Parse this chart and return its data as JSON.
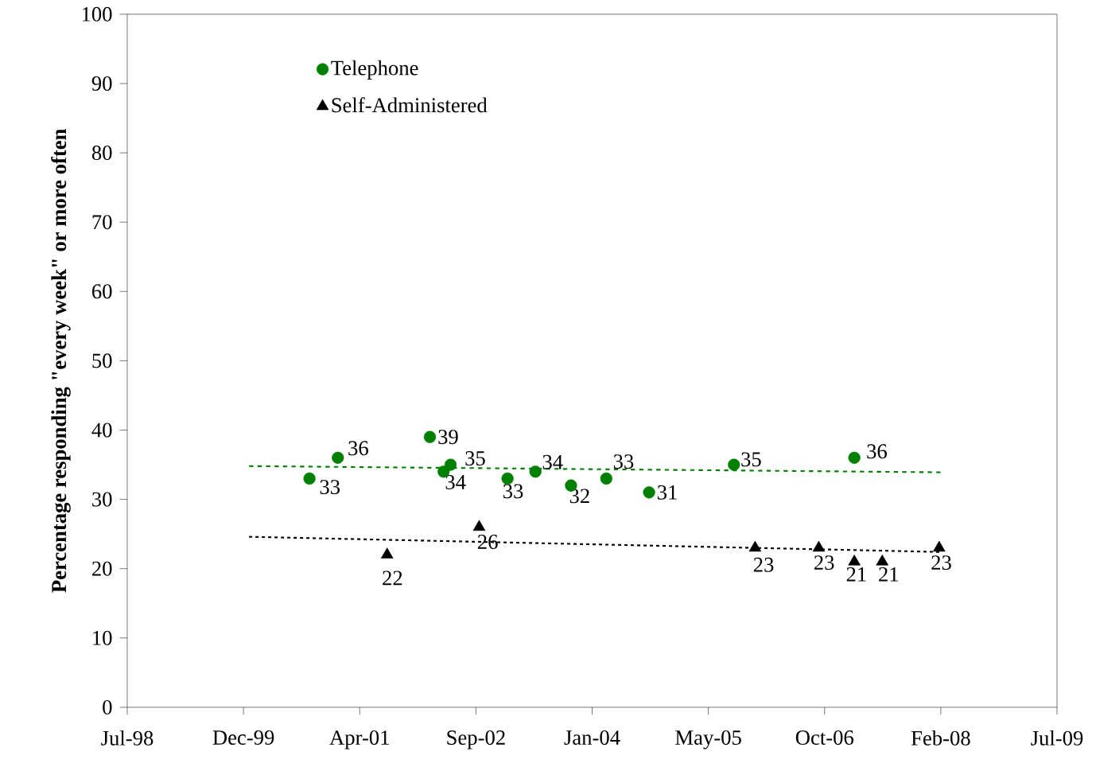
{
  "chart_data": {
    "type": "scatter",
    "ylabel": "Percentage responding \"every week\" or more often",
    "xlim": [
      "1998-07-24",
      "2009-07-06"
    ],
    "xticks": [
      {
        "value": "1998-07-24",
        "label": "Jul-98"
      },
      {
        "value": "1999-12-06",
        "label": "Dec-99"
      },
      {
        "value": "2001-04-19",
        "label": "Apr-01"
      },
      {
        "value": "2002-09-01",
        "label": "Sep-02"
      },
      {
        "value": "2004-01-14",
        "label": "Jan-04"
      },
      {
        "value": "2005-05-28",
        "label": "May-05"
      },
      {
        "value": "2006-10-10",
        "label": "Oct-06"
      },
      {
        "value": "2008-02-22",
        "label": "Feb-08"
      },
      {
        "value": "2009-07-06",
        "label": "Jul-09"
      }
    ],
    "ylim": [
      0,
      100
    ],
    "yticks": [
      0,
      10,
      20,
      30,
      40,
      50,
      60,
      70,
      80,
      90,
      100
    ],
    "legend": "top left",
    "series": [
      {
        "name": "Telephone",
        "marker": "circle",
        "color": "#008000",
        "x": [
          "2000-09",
          "2001-01",
          "2002-02",
          "2002-04",
          "2002-05",
          "2003-01",
          "2003-05",
          "2003-10",
          "2004-03",
          "2004-09",
          "2005-09",
          "2007-02"
        ],
        "values": [
          33,
          36,
          39,
          34,
          35,
          33,
          34,
          32,
          33,
          31,
          35,
          36
        ],
        "value_labels": [
          "33",
          "36",
          "39",
          "34",
          "35",
          "33",
          "34",
          "32",
          "33",
          "31",
          "35",
          "36"
        ]
      },
      {
        "name": "Self-Administered",
        "marker": "triangle",
        "color": "#000000",
        "x": [
          "2001-08",
          "2002-09",
          "2005-12",
          "2006-09",
          "2007-02",
          "2007-06",
          "2008-02"
        ],
        "values": [
          22,
          26,
          23,
          23,
          21,
          21,
          23
        ],
        "value_labels": [
          "22",
          "26",
          "23",
          "23",
          "21",
          "21",
          "23"
        ]
      },
      {
        "type": "line",
        "line_style": "dashed",
        "color": "#008000",
        "x": [
          "1999-12-30",
          "2008-02-29"
        ],
        "values": [
          34.8,
          33.9
        ]
      },
      {
        "type": "line",
        "line_style": "dotted",
        "color": "#000000",
        "x": [
          "1999-12-30",
          "2008-02-29"
        ],
        "values": [
          24.6,
          22.4
        ]
      }
    ]
  }
}
